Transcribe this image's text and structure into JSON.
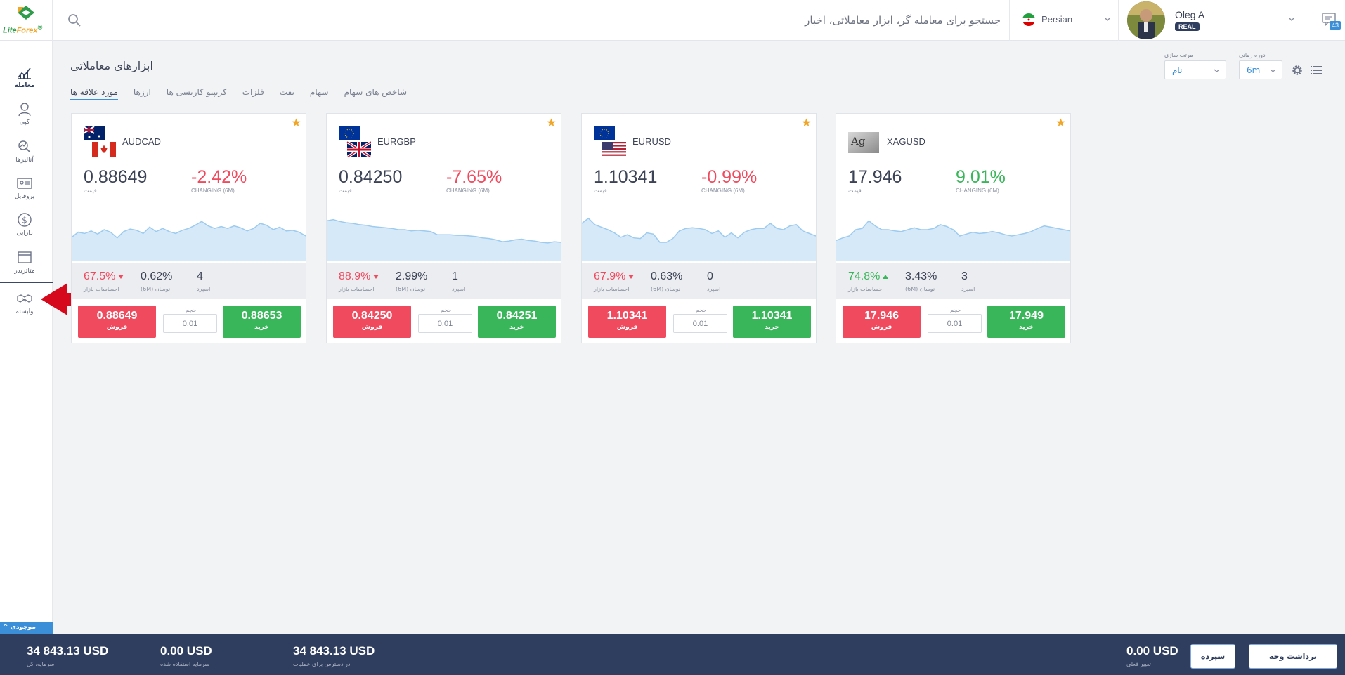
{
  "header": {
    "logo_text_a": "Lite",
    "logo_text_b": "Forex",
    "search_placeholder": "جستجو برای معامله گر، ابزار معاملاتی، اخبار",
    "language": "Persian",
    "user_name": "Oleg A",
    "account_badge": "REAL",
    "chat_count": "43"
  },
  "sidebar": {
    "items": [
      {
        "label": "معامله",
        "icon": "chart-icon",
        "active": true
      },
      {
        "label": "کپی",
        "icon": "copy-icon"
      },
      {
        "label": "آنالیزها",
        "icon": "analytics-icon"
      },
      {
        "label": "پروفایل",
        "icon": "profile-icon"
      },
      {
        "label": "دارایی",
        "icon": "dollar-icon"
      },
      {
        "label": "متاتریدر",
        "icon": "window-icon"
      },
      {
        "label": "وابسته",
        "icon": "handshake-icon"
      }
    ],
    "balance_tab": "موجودی"
  },
  "main": {
    "title": "ابزارهای معاملاتی",
    "tabs": [
      {
        "label": "مورد علاقه ها",
        "active": true
      },
      {
        "label": "ارزها"
      },
      {
        "label": "کریپتو کارنسی ها"
      },
      {
        "label": "فلزات"
      },
      {
        "label": "نفت"
      },
      {
        "label": "سهام"
      },
      {
        "label": "شاخص های سهام"
      }
    ],
    "sort_label": "مرتب سازی",
    "sort_value": "نام",
    "period_label": "دوره زمانی",
    "period_value": "6m"
  },
  "colors": {
    "positive": "#3ab65a",
    "negative": "#f04a5e",
    "accent": "#3b8fd8",
    "navy": "#2f3e5e",
    "star": "#f0a626"
  },
  "card_labels": {
    "price": "قیمت",
    "changing": "CHANGING (6M)",
    "sentiment": "احساسات بازار",
    "volatility": "(6M) نوسان",
    "spread": "اسپرد",
    "volume": "حجم",
    "sell": "فروش",
    "buy": "خرید"
  },
  "cards": [
    {
      "symbol": "AUDCAD",
      "price": "0.88649",
      "change": "-2.42%",
      "change_dir": "down",
      "sentiment": "67.5%",
      "sentiment_dir": "down",
      "volatility": "0.62%",
      "spread": "4",
      "sell": "0.88649",
      "buy": "0.88653",
      "volume": "0.01",
      "series": [
        62,
        54,
        56,
        52,
        57,
        50,
        54,
        63,
        53,
        49,
        51,
        56,
        46,
        53,
        48,
        53,
        56,
        51,
        48,
        43,
        37,
        44,
        48,
        45,
        48,
        44,
        47,
        52,
        48,
        40,
        43,
        50,
        46,
        52,
        51,
        54,
        60
      ]
    },
    {
      "symbol": "EURGBP",
      "price": "0.84250",
      "change": "-7.65%",
      "change_dir": "down",
      "sentiment": "88.9%",
      "sentiment_dir": "down",
      "volatility": "2.99%",
      "spread": "1",
      "sell": "0.84250",
      "buy": "0.84251",
      "volume": "0.01",
      "series": [
        36,
        34,
        37,
        39,
        40,
        42,
        43,
        45,
        46,
        47,
        48,
        50,
        50,
        52,
        51,
        52,
        53,
        58,
        58,
        58,
        59,
        59,
        60,
        61,
        63,
        64,
        66,
        69,
        68,
        66,
        65,
        67,
        68,
        70,
        71,
        69,
        70
      ]
    },
    {
      "symbol": "EURUSD",
      "price": "1.10341",
      "change": "-0.99%",
      "change_dir": "down",
      "sentiment": "67.9%",
      "sentiment_dir": "down",
      "volatility": "0.63%",
      "spread": "0",
      "sell": "1.10341",
      "buy": "1.10341",
      "volume": "0.01",
      "series": [
        40,
        32,
        42,
        46,
        50,
        55,
        62,
        58,
        63,
        64,
        55,
        57,
        70,
        70,
        64,
        52,
        48,
        47,
        48,
        50,
        56,
        52,
        62,
        55,
        63,
        54,
        50,
        48,
        48,
        40,
        48,
        50,
        44,
        42,
        52,
        56,
        60
      ]
    },
    {
      "symbol": "XAGUSD",
      "price": "17.946",
      "change": "9.01%",
      "change_dir": "up",
      "sentiment": "74.8%",
      "sentiment_dir": "up",
      "volatility": "3.43%",
      "spread": "3",
      "sell": "17.946",
      "buy": "17.949",
      "volume": "0.01",
      "series": [
        67,
        63,
        60,
        50,
        48,
        36,
        44,
        50,
        50,
        52,
        53,
        50,
        47,
        50,
        50,
        48,
        42,
        45,
        50,
        60,
        57,
        54,
        56,
        55,
        53,
        55,
        58,
        60,
        58,
        56,
        53,
        48,
        44,
        46,
        48,
        50,
        52
      ]
    }
  ],
  "footer": {
    "total_value": "34 843.13 USD",
    "total_label": "سرمایه، کل",
    "used_value": "0.00 USD",
    "used_label": "سرمایه استفاده شده",
    "available_value": "34 843.13 USD",
    "available_label": "در دسترس برای عملیات",
    "change_value": "0.00 USD",
    "change_label": "تغییر فعلی",
    "deposit_button": "سپرده",
    "withdraw_button": "برداشت وجه"
  }
}
